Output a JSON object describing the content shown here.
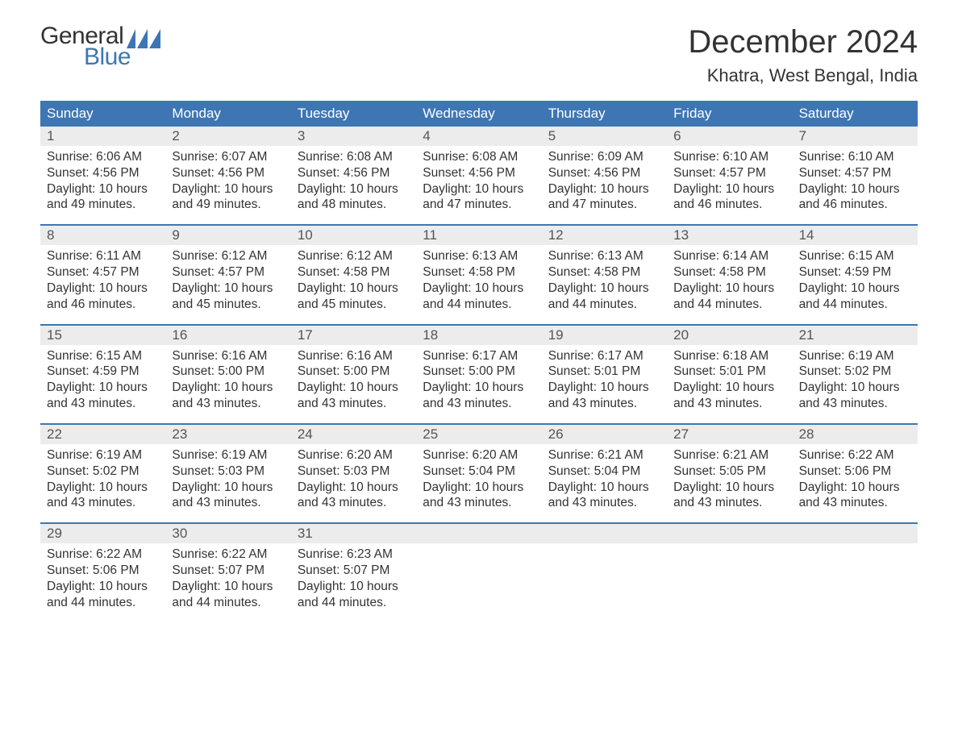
{
  "logo": {
    "line1": "General",
    "line2": "Blue"
  },
  "header": {
    "month_title": "December 2024",
    "location": "Khatra, West Bengal, India"
  },
  "styling": {
    "header_bg": "#3e76b3",
    "header_text": "#ffffff",
    "daynum_bg": "#ececec",
    "daynum_text": "#555555",
    "body_text": "#333333",
    "page_bg": "#ffffff",
    "title_fontsize": 40,
    "location_fontsize": 22,
    "dow_fontsize": 17,
    "body_fontsize": 15.5,
    "columns": 7
  },
  "days_of_week": [
    "Sunday",
    "Monday",
    "Tuesday",
    "Wednesday",
    "Thursday",
    "Friday",
    "Saturday"
  ],
  "weeks": [
    [
      {
        "n": "1",
        "sr": "6:06 AM",
        "ss": "4:56 PM",
        "dl": "10 hours and 49 minutes."
      },
      {
        "n": "2",
        "sr": "6:07 AM",
        "ss": "4:56 PM",
        "dl": "10 hours and 49 minutes."
      },
      {
        "n": "3",
        "sr": "6:08 AM",
        "ss": "4:56 PM",
        "dl": "10 hours and 48 minutes."
      },
      {
        "n": "4",
        "sr": "6:08 AM",
        "ss": "4:56 PM",
        "dl": "10 hours and 47 minutes."
      },
      {
        "n": "5",
        "sr": "6:09 AM",
        "ss": "4:56 PM",
        "dl": "10 hours and 47 minutes."
      },
      {
        "n": "6",
        "sr": "6:10 AM",
        "ss": "4:57 PM",
        "dl": "10 hours and 46 minutes."
      },
      {
        "n": "7",
        "sr": "6:10 AM",
        "ss": "4:57 PM",
        "dl": "10 hours and 46 minutes."
      }
    ],
    [
      {
        "n": "8",
        "sr": "6:11 AM",
        "ss": "4:57 PM",
        "dl": "10 hours and 46 minutes."
      },
      {
        "n": "9",
        "sr": "6:12 AM",
        "ss": "4:57 PM",
        "dl": "10 hours and 45 minutes."
      },
      {
        "n": "10",
        "sr": "6:12 AM",
        "ss": "4:58 PM",
        "dl": "10 hours and 45 minutes."
      },
      {
        "n": "11",
        "sr": "6:13 AM",
        "ss": "4:58 PM",
        "dl": "10 hours and 44 minutes."
      },
      {
        "n": "12",
        "sr": "6:13 AM",
        "ss": "4:58 PM",
        "dl": "10 hours and 44 minutes."
      },
      {
        "n": "13",
        "sr": "6:14 AM",
        "ss": "4:58 PM",
        "dl": "10 hours and 44 minutes."
      },
      {
        "n": "14",
        "sr": "6:15 AM",
        "ss": "4:59 PM",
        "dl": "10 hours and 44 minutes."
      }
    ],
    [
      {
        "n": "15",
        "sr": "6:15 AM",
        "ss": "4:59 PM",
        "dl": "10 hours and 43 minutes."
      },
      {
        "n": "16",
        "sr": "6:16 AM",
        "ss": "5:00 PM",
        "dl": "10 hours and 43 minutes."
      },
      {
        "n": "17",
        "sr": "6:16 AM",
        "ss": "5:00 PM",
        "dl": "10 hours and 43 minutes."
      },
      {
        "n": "18",
        "sr": "6:17 AM",
        "ss": "5:00 PM",
        "dl": "10 hours and 43 minutes."
      },
      {
        "n": "19",
        "sr": "6:17 AM",
        "ss": "5:01 PM",
        "dl": "10 hours and 43 minutes."
      },
      {
        "n": "20",
        "sr": "6:18 AM",
        "ss": "5:01 PM",
        "dl": "10 hours and 43 minutes."
      },
      {
        "n": "21",
        "sr": "6:19 AM",
        "ss": "5:02 PM",
        "dl": "10 hours and 43 minutes."
      }
    ],
    [
      {
        "n": "22",
        "sr": "6:19 AM",
        "ss": "5:02 PM",
        "dl": "10 hours and 43 minutes."
      },
      {
        "n": "23",
        "sr": "6:19 AM",
        "ss": "5:03 PM",
        "dl": "10 hours and 43 minutes."
      },
      {
        "n": "24",
        "sr": "6:20 AM",
        "ss": "5:03 PM",
        "dl": "10 hours and 43 minutes."
      },
      {
        "n": "25",
        "sr": "6:20 AM",
        "ss": "5:04 PM",
        "dl": "10 hours and 43 minutes."
      },
      {
        "n": "26",
        "sr": "6:21 AM",
        "ss": "5:04 PM",
        "dl": "10 hours and 43 minutes."
      },
      {
        "n": "27",
        "sr": "6:21 AM",
        "ss": "5:05 PM",
        "dl": "10 hours and 43 minutes."
      },
      {
        "n": "28",
        "sr": "6:22 AM",
        "ss": "5:06 PM",
        "dl": "10 hours and 43 minutes."
      }
    ],
    [
      {
        "n": "29",
        "sr": "6:22 AM",
        "ss": "5:06 PM",
        "dl": "10 hours and 44 minutes."
      },
      {
        "n": "30",
        "sr": "6:22 AM",
        "ss": "5:07 PM",
        "dl": "10 hours and 44 minutes."
      },
      {
        "n": "31",
        "sr": "6:23 AM",
        "ss": "5:07 PM",
        "dl": "10 hours and 44 minutes."
      },
      null,
      null,
      null,
      null
    ]
  ],
  "labels": {
    "sunrise": "Sunrise: ",
    "sunset": "Sunset: ",
    "daylight": "Daylight: "
  }
}
